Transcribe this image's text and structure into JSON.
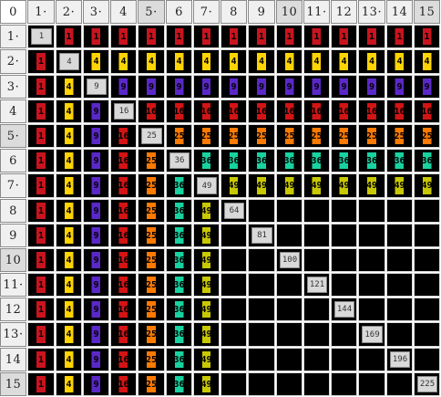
{
  "corner_label": "0",
  "headers": [
    "1",
    "2",
    "3",
    "4",
    "5",
    "6",
    "7",
    "8",
    "9",
    "10",
    "11",
    "12",
    "13",
    "14",
    "15"
  ],
  "header_label_display": [
    "1·",
    "2·",
    "3·",
    "4",
    "5·",
    "6",
    "7·",
    "8",
    "9",
    "10",
    "11·",
    "12",
    "13·",
    "14",
    "15"
  ],
  "row_label_display": [
    "1·",
    "2·",
    "3·",
    "4",
    "5·",
    "6",
    "7·",
    "8",
    "9",
    "10",
    "11·",
    "12",
    "13·",
    "14",
    "15"
  ],
  "highlighted_headers": [
    5,
    10,
    15
  ],
  "colors": {
    "1": "#c8141e",
    "2": "#ffd400",
    "3": "#5a28c8",
    "4": "#d21414",
    "5": "#ff7a00",
    "6": "#18d2a0",
    "7": "#c8c800",
    "background": "#000000",
    "diagonal": "#d9d9d9"
  },
  "squares": [
    "1",
    "4",
    "9",
    "16",
    "25",
    "36",
    "49",
    "64",
    "81",
    "100",
    "121",
    "144",
    "169",
    "196",
    "225"
  ],
  "cell_values": {
    "col1": "1",
    "col2": "4",
    "col3": "9",
    "col4": "16",
    "col5": "25",
    "col6": "36",
    "col7": "49"
  }
}
